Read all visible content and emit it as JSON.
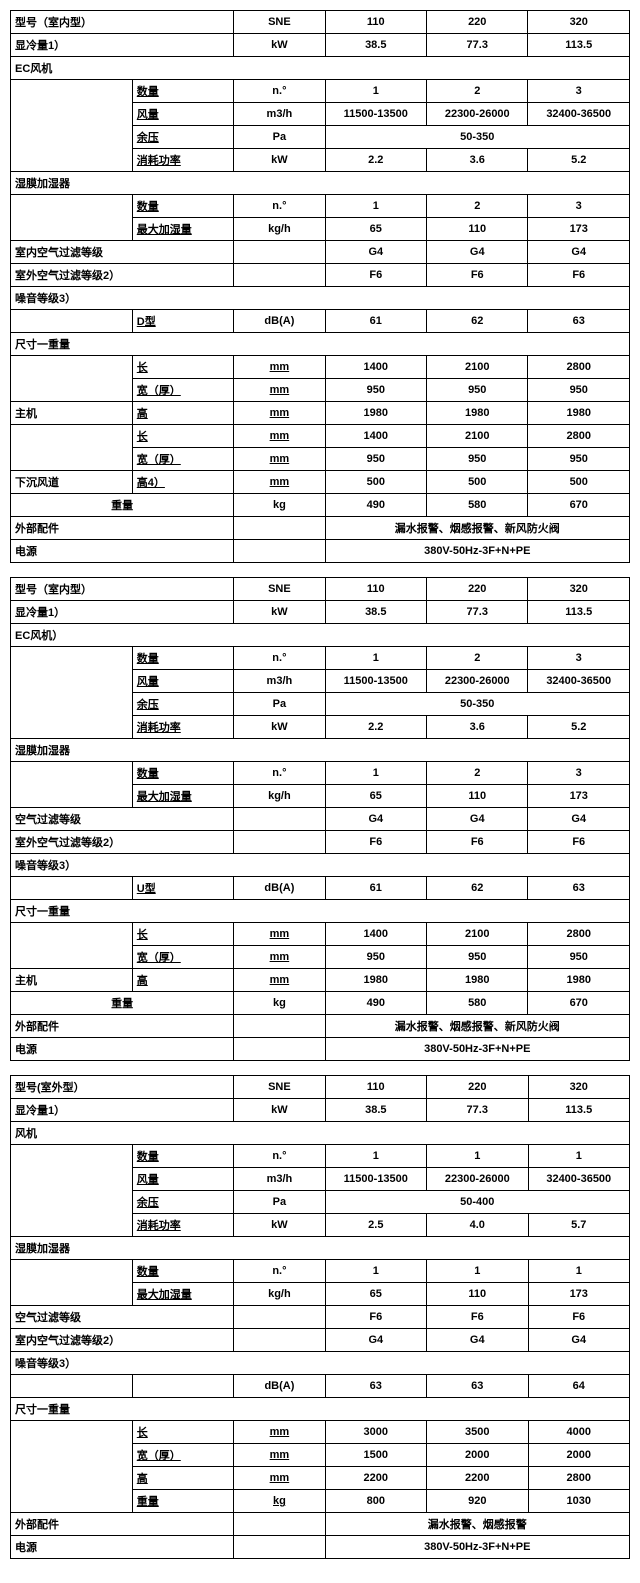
{
  "tables": [
    {
      "header": {
        "label": "型号（室内型）",
        "unitLabel": "SNE",
        "models": [
          "110",
          "220",
          "320"
        ]
      },
      "cooling": {
        "label": "显冷量1）",
        "unit": "kW",
        "values": [
          "38.5",
          "77.3",
          "113.5"
        ]
      },
      "fan": {
        "title": "EC风机",
        "rows": [
          {
            "label": "数量",
            "unit": "n.°",
            "values": [
              "1",
              "2",
              "3"
            ]
          },
          {
            "label": "风量",
            "unit": "m3/h",
            "values": [
              "11500-13500",
              "22300-26000",
              "32400-36500"
            ]
          },
          {
            "label": "余压",
            "unit": "Pa",
            "merged": "50-350"
          },
          {
            "label": "消耗功率",
            "unit": "kW",
            "values": [
              "2.2",
              "3.6",
              "5.2"
            ]
          }
        ]
      },
      "humidifier": {
        "title": "湿膜加湿器",
        "rows": [
          {
            "label": "数量",
            "unit": "n.°",
            "values": [
              "1",
              "2",
              "3"
            ]
          },
          {
            "label": "最大加湿量",
            "unit": "kg/h",
            "values": [
              "65",
              "110",
              "173"
            ]
          }
        ]
      },
      "filters": [
        {
          "label": "室内空气过滤等级",
          "values": [
            "G4",
            "G4",
            "G4"
          ]
        },
        {
          "label": "室外空气过滤等级2）",
          "values": [
            "F6",
            "F6",
            "F6"
          ]
        }
      ],
      "noise": {
        "title": "噪音等级3）",
        "row": {
          "label": "D型",
          "unit": "dB(A)",
          "values": [
            "61",
            "62",
            "63"
          ]
        }
      },
      "dims": {
        "title": "尺寸一重量",
        "groups": [
          {
            "side": "主机",
            "rows": [
              {
                "label": "长",
                "unit": "mm",
                "values": [
                  "1400",
                  "2100",
                  "2800"
                ]
              },
              {
                "label": "宽（厚）",
                "unit": "mm",
                "values": [
                  "950",
                  "950",
                  "950"
                ]
              },
              {
                "label": "高",
                "unit": "mm",
                "values": [
                  "1980",
                  "1980",
                  "1980"
                ]
              }
            ]
          },
          {
            "side": "下沉风道",
            "rows": [
              {
                "label": "长",
                "unit": "mm",
                "values": [
                  "1400",
                  "2100",
                  "2800"
                ]
              },
              {
                "label": "宽（厚）",
                "unit": "mm",
                "values": [
                  "950",
                  "950",
                  "950"
                ]
              },
              {
                "label": "高4）",
                "unit": "mm",
                "values": [
                  "500",
                  "500",
                  "500"
                ]
              }
            ]
          }
        ],
        "weight": {
          "label": "重量",
          "unit": "kg",
          "values": [
            "490",
            "580",
            "670"
          ]
        }
      },
      "accessories": {
        "label": "外部配件",
        "value": "漏水报警、烟感报警、新风防火阀"
      },
      "power": {
        "label": "电源",
        "value": "380V-50Hz-3F+N+PE"
      }
    },
    {
      "header": {
        "label": "型号（室内型）",
        "unitLabel": "SNE",
        "models": [
          "110",
          "220",
          "320"
        ]
      },
      "cooling": {
        "label": "显冷量1）",
        "unit": "kW",
        "values": [
          "38.5",
          "77.3",
          "113.5"
        ]
      },
      "fan": {
        "title": "EC风机）",
        "rows": [
          {
            "label": "数量",
            "unit": "n.°",
            "values": [
              "1",
              "2",
              "3"
            ]
          },
          {
            "label": "风量",
            "unit": "m3/h",
            "values": [
              "11500-13500",
              "22300-26000",
              "32400-36500"
            ]
          },
          {
            "label": "余压",
            "unit": "Pa",
            "merged": "50-350"
          },
          {
            "label": "消耗功率",
            "unit": "kW",
            "values": [
              "2.2",
              "3.6",
              "5.2"
            ]
          }
        ]
      },
      "humidifier": {
        "title": "湿膜加湿器",
        "rows": [
          {
            "label": "数量",
            "unit": "n.°",
            "values": [
              "1",
              "2",
              "3"
            ]
          },
          {
            "label": "最大加湿量",
            "unit": "kg/h",
            "values": [
              "65",
              "110",
              "173"
            ]
          }
        ]
      },
      "filters": [
        {
          "label": "空气过滤等级",
          "values": [
            "G4",
            "G4",
            "G4"
          ]
        },
        {
          "label": "室外空气过滤等级2）",
          "values": [
            "F6",
            "F6",
            "F6"
          ]
        }
      ],
      "noise": {
        "title": "噪音等级3）",
        "row": {
          "label": "U型",
          "unit": "dB(A)",
          "values": [
            "61",
            "62",
            "63"
          ]
        }
      },
      "dims": {
        "title": "尺寸一重量",
        "groups": [
          {
            "side": "主机",
            "rows": [
              {
                "label": "长",
                "unit": "mm",
                "values": [
                  "1400",
                  "2100",
                  "2800"
                ]
              },
              {
                "label": "宽（厚）",
                "unit": "mm",
                "values": [
                  "950",
                  "950",
                  "950"
                ]
              },
              {
                "label": "高",
                "unit": "mm",
                "values": [
                  "1980",
                  "1980",
                  "1980"
                ]
              }
            ]
          }
        ],
        "weight": {
          "label": "重量",
          "unit": "kg",
          "values": [
            "490",
            "580",
            "670"
          ]
        }
      },
      "accessories": {
        "label": "外部配件",
        "value": "漏水报警、烟感报警、新风防火阀"
      },
      "power": {
        "label": "电源",
        "value": "380V-50Hz-3F+N+PE"
      }
    },
    {
      "header": {
        "label": "型号(室外型）",
        "unitLabel": "SNE",
        "models": [
          "110",
          "220",
          "320"
        ]
      },
      "cooling": {
        "label": "显冷量1）",
        "unit": "kW",
        "values": [
          "38.5",
          "77.3",
          "113.5"
        ]
      },
      "fan": {
        "title": "风机",
        "rows": [
          {
            "label": "数量",
            "unit": "n.°",
            "values": [
              "1",
              "1",
              "1"
            ]
          },
          {
            "label": "风量",
            "unit": "m3/h",
            "values": [
              "11500-13500",
              "22300-26000",
              "32400-36500"
            ]
          },
          {
            "label": "余压",
            "unit": "Pa",
            "merged": "50-400"
          },
          {
            "label": "消耗功率",
            "unit": "kW",
            "values": [
              "2.5",
              "4.0",
              "5.7"
            ]
          }
        ]
      },
      "humidifier": {
        "title": "湿膜加湿器",
        "rows": [
          {
            "label": "数量",
            "unit": "n.°",
            "values": [
              "1",
              "1",
              "1"
            ]
          },
          {
            "label": "最大加湿量",
            "unit": "kg/h",
            "values": [
              "65",
              "110",
              "173"
            ]
          }
        ]
      },
      "filters": [
        {
          "label": "空气过滤等级",
          "values": [
            "F6",
            "F6",
            "F6"
          ]
        },
        {
          "label": "室内空气过滤等级2）",
          "values": [
            "G4",
            "G4",
            "G4"
          ]
        }
      ],
      "noise": {
        "title": "噪音等级3）",
        "row": {
          "label": "",
          "unit": "dB(A)",
          "values": [
            "63",
            "63",
            "64"
          ]
        }
      },
      "dims": {
        "title": "尺寸一重量",
        "groups": [
          {
            "side": "",
            "rows": [
              {
                "label": "长",
                "unit": "mm",
                "values": [
                  "3000",
                  "3500",
                  "4000"
                ]
              },
              {
                "label": "宽（厚）",
                "unit": "mm",
                "values": [
                  "1500",
                  "2000",
                  "2000"
                ]
              },
              {
                "label": "高",
                "unit": "mm",
                "values": [
                  "2200",
                  "2200",
                  "2800"
                ]
              },
              {
                "label": "重量",
                "unit": "kg",
                "values": [
                  "800",
                  "920",
                  "1030"
                ]
              }
            ]
          }
        ]
      },
      "accessories": {
        "label": "外部配件",
        "value": "漏水报警、烟感报警"
      },
      "power": {
        "label": "电源",
        "value": "380V-50Hz-3F+N+PE"
      }
    }
  ]
}
